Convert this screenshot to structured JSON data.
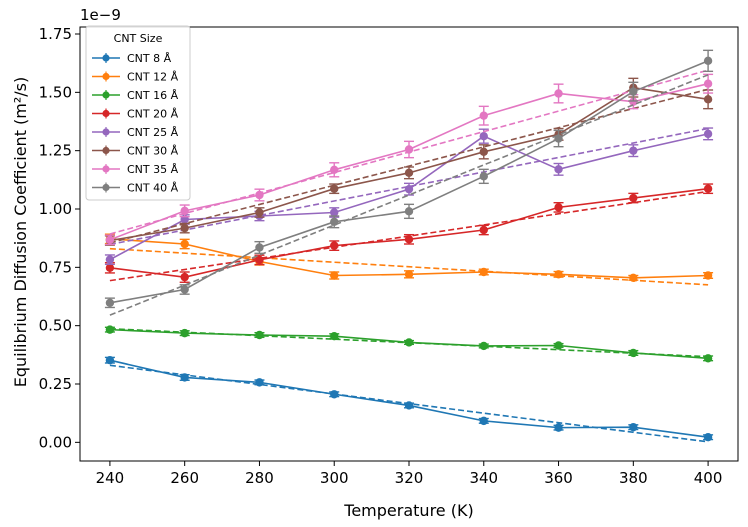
{
  "chart_data": {
    "type": "line",
    "title": "",
    "xlabel": "Temperature (K)",
    "ylabel": "Equilibrium Diffusion Coefficient (m²/s)",
    "y_scale_label": "1e−9",
    "xlim": [
      232,
      408
    ],
    "ylim": [
      -0.08,
      1.78
    ],
    "x": [
      240,
      260,
      280,
      300,
      320,
      340,
      360,
      380,
      400
    ],
    "x_ticks": [
      "240",
      "260",
      "280",
      "300",
      "320",
      "340",
      "360",
      "380",
      "400"
    ],
    "y_ticks": [
      "0.00",
      "0.25",
      "0.50",
      "0.75",
      "1.00",
      "1.25",
      "1.50",
      "1.75"
    ],
    "y_tick_values": [
      0,
      0.25,
      0.5,
      0.75,
      1.0,
      1.25,
      1.5,
      1.75
    ],
    "legend": {
      "title": "CNT Size",
      "position": "top-left"
    },
    "series": [
      {
        "name": "CNT 8 Å",
        "color": "#1f77b4",
        "values": [
          0.352,
          0.278,
          0.257,
          0.206,
          0.158,
          0.092,
          0.063,
          0.065,
          0.022
        ],
        "errors": [
          0.012,
          0.012,
          0.01,
          0.01,
          0.01,
          0.01,
          0.01,
          0.01,
          0.01
        ],
        "fit": [
          0.33,
          0.002
        ]
      },
      {
        "name": "CNT 12 Å",
        "color": "#ff7f0e",
        "values": [
          0.872,
          0.85,
          0.775,
          0.715,
          0.72,
          0.73,
          0.72,
          0.705,
          0.715
        ],
        "errors": [
          0.02,
          0.02,
          0.015,
          0.015,
          0.015,
          0.012,
          0.012,
          0.01,
          0.012
        ],
        "fit": [
          0.83,
          0.675
        ]
      },
      {
        "name": "CNT 16 Å",
        "color": "#2ca02c",
        "values": [
          0.483,
          0.468,
          0.46,
          0.455,
          0.428,
          0.413,
          0.415,
          0.383,
          0.36
        ],
        "errors": [
          0.01,
          0.01,
          0.01,
          0.01,
          0.008,
          0.008,
          0.008,
          0.01,
          0.01
        ],
        "fit": [
          0.487,
          0.367
        ]
      },
      {
        "name": "CNT 20 Å",
        "color": "#d62728",
        "values": [
          0.748,
          0.708,
          0.782,
          0.843,
          0.87,
          0.91,
          1.007,
          1.047,
          1.087
        ],
        "errors": [
          0.022,
          0.022,
          0.02,
          0.02,
          0.02,
          0.02,
          0.02,
          0.02,
          0.02
        ],
        "fit": [
          0.693,
          1.075
        ]
      },
      {
        "name": "CNT 25 Å",
        "color": "#9467bd",
        "values": [
          0.783,
          0.955,
          0.97,
          0.985,
          1.085,
          1.312,
          1.17,
          1.25,
          1.322
        ],
        "errors": [
          0.02,
          0.02,
          0.02,
          0.02,
          0.025,
          0.03,
          0.025,
          0.025,
          0.025
        ],
        "fit": [
          0.848,
          1.345
        ]
      },
      {
        "name": "CNT 30 Å",
        "color": "#8c564b",
        "values": [
          0.865,
          0.918,
          0.985,
          1.087,
          1.155,
          1.245,
          1.32,
          1.52,
          1.47
        ],
        "errors": [
          0.02,
          0.02,
          0.02,
          0.02,
          0.025,
          0.03,
          0.025,
          0.04,
          0.04
        ],
        "fit": [
          0.855,
          1.513
        ]
      },
      {
        "name": "CNT 35 Å",
        "color": "#e377c2",
        "values": [
          0.868,
          0.992,
          1.06,
          1.168,
          1.255,
          1.4,
          1.495,
          1.46,
          1.537
        ],
        "errors": [
          0.02,
          0.025,
          0.025,
          0.03,
          0.035,
          0.04,
          0.04,
          0.03,
          0.04
        ],
        "fit": [
          0.893,
          1.595
        ]
      },
      {
        "name": "CNT 40 Å",
        "color": "#7f7f7f",
        "values": [
          0.598,
          0.655,
          0.835,
          0.945,
          0.99,
          1.14,
          1.302,
          1.503,
          1.635
        ],
        "errors": [
          0.02,
          0.02,
          0.025,
          0.025,
          0.03,
          0.03,
          0.035,
          0.04,
          0.045
        ],
        "fit": [
          0.545,
          1.575
        ]
      }
    ]
  }
}
